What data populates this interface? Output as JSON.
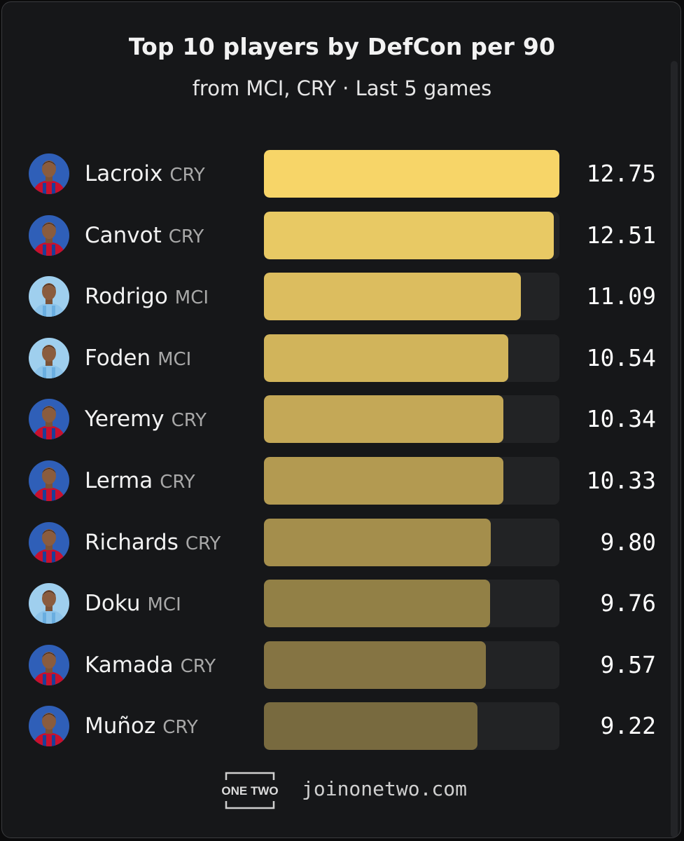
{
  "chart_data": {
    "type": "bar",
    "orientation": "horizontal",
    "title": "Top 10 players by DefCon per 90",
    "subtitle": "from MCI, CRY · Last 5 games",
    "xlim": [
      0,
      12.75
    ],
    "rows": [
      {
        "name": "Lacroix",
        "team": "CRY",
        "value": 12.75,
        "value_label": "12.75",
        "color": "#f7d568",
        "avatar": "cry"
      },
      {
        "name": "Canvot",
        "team": "CRY",
        "value": 12.51,
        "value_label": "12.51",
        "color": "#e8c964",
        "avatar": "cry"
      },
      {
        "name": "Rodrigo",
        "team": "MCI",
        "value": 11.09,
        "value_label": "11.09",
        "color": "#dcbd5f",
        "avatar": "mci"
      },
      {
        "name": "Foden",
        "team": "MCI",
        "value": 10.54,
        "value_label": "10.54",
        "color": "#d1b45b",
        "avatar": "mci"
      },
      {
        "name": "Yeremy",
        "team": "CRY",
        "value": 10.34,
        "value_label": "10.34",
        "color": "#c4a857",
        "avatar": "cry"
      },
      {
        "name": "Lerma",
        "team": "CRY",
        "value": 10.33,
        "value_label": "10.33",
        "color": "#b39a51",
        "avatar": "cry"
      },
      {
        "name": "Richards",
        "team": "CRY",
        "value": 9.8,
        "value_label": "9.80",
        "color": "#a48e4c",
        "avatar": "cry"
      },
      {
        "name": "Doku",
        "team": "MCI",
        "value": 9.76,
        "value_label": "9.76",
        "color": "#928046",
        "avatar": "mci"
      },
      {
        "name": "Kamada",
        "team": "CRY",
        "value": 9.57,
        "value_label": "9.57",
        "color": "#857443",
        "avatar": "cry"
      },
      {
        "name": "Muñoz",
        "team": "CRY",
        "value": 9.22,
        "value_label": "9.22",
        "color": "#786a3f",
        "avatar": "cry"
      }
    ]
  },
  "footer": {
    "logo_text": "ONE TWO",
    "site": "joinonetwo.com"
  }
}
